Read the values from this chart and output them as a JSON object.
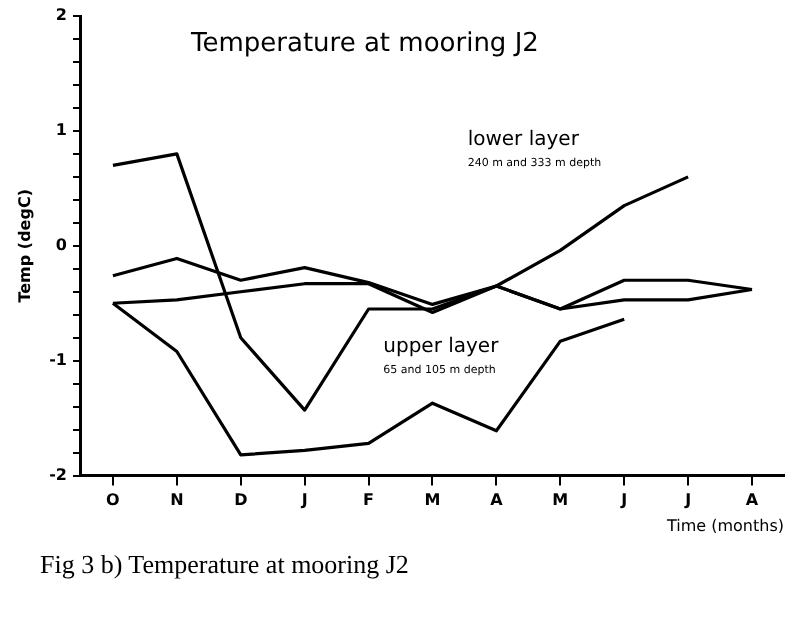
{
  "chart_data": {
    "type": "line",
    "title": "Temperature at mooring J2",
    "xlabel": "Time (months)",
    "ylabel": "Temp (degC)",
    "categories": [
      "O",
      "N",
      "D",
      "J",
      "F",
      "M",
      "A",
      "M",
      "J",
      "J",
      "A"
    ],
    "series": [
      {
        "color": "#000000",
        "values": [
          0.7,
          0.8,
          -0.8,
          -1.43,
          -0.55,
          -0.55,
          -0.35,
          -0.55,
          -0.3,
          -0.3,
          -0.38
        ]
      },
      {
        "color": "#000000",
        "values": [
          -0.26,
          -0.11,
          -0.3,
          -0.19,
          -0.32,
          -0.51,
          -0.35,
          -0.04,
          0.35,
          0.6,
          null
        ]
      },
      {
        "color": "#000000",
        "values": [
          -0.5,
          -0.47,
          -0.4,
          -0.33,
          -0.33,
          -0.58,
          -0.35,
          -0.55,
          -0.47,
          -0.47,
          -0.38
        ]
      },
      {
        "color": "#000000",
        "values": [
          -0.5,
          -0.92,
          -1.82,
          -1.78,
          -1.72,
          -1.37,
          -1.61,
          -0.83,
          -0.64,
          null,
          null
        ]
      }
    ],
    "ylim": [
      -2,
      2
    ],
    "yticks": [
      -2,
      {
        "value": -1.8,
        "label": null
      },
      {
        "value": -1.6,
        "label": null
      },
      {
        "value": -1.4,
        "label": null
      },
      {
        "value": -1.2,
        "label": null
      },
      -1,
      {
        "value": -0.8,
        "label": null
      },
      {
        "value": -0.6,
        "label": null
      },
      {
        "value": -0.4,
        "label": null
      },
      {
        "value": -0.2,
        "label": null
      },
      0,
      {
        "value": 0.2,
        "label": null
      },
      {
        "value": 0.4,
        "label": null
      },
      {
        "value": 0.6,
        "label": null
      },
      {
        "value": 0.8,
        "label": null
      },
      1,
      {
        "value": 1.2,
        "label": null
      },
      {
        "value": 1.4,
        "label": null
      },
      {
        "value": 1.6,
        "label": null
      },
      {
        "value": 1.8,
        "label": null
      },
      2
    ],
    "annotations": [
      "lower layer",
      "240 m and 333 m depth",
      "upper layer",
      "65 and 105 m depth",
      "Fig 3 b) Temperature at mooring J2"
    ],
    "grid": false,
    "legend": false,
    "marker": "none",
    "line_style": "solid"
  }
}
